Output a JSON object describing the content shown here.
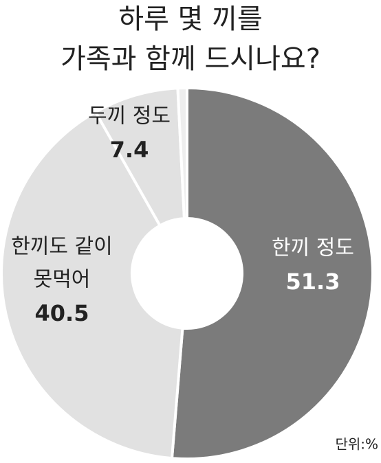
{
  "chart_data": {
    "type": "donut",
    "title": [
      "하루 몇 끼를",
      "가족과 함께 드시나요?"
    ],
    "categories": [
      [
        "한끼 정도"
      ],
      [
        "한끼도 같이",
        "못먹어"
      ],
      [
        "두끼 정도"
      ],
      null
    ],
    "values": [
      51.3,
      40.5,
      7.4,
      0.8
    ],
    "colors": [
      "#7b7b7b",
      "#e1e1e1",
      "#e1e1e1",
      "#eeeeee"
    ],
    "label_colors": [
      "#ffffff",
      "#222222",
      "#222222",
      "#222222"
    ],
    "unit": "단위:%"
  }
}
